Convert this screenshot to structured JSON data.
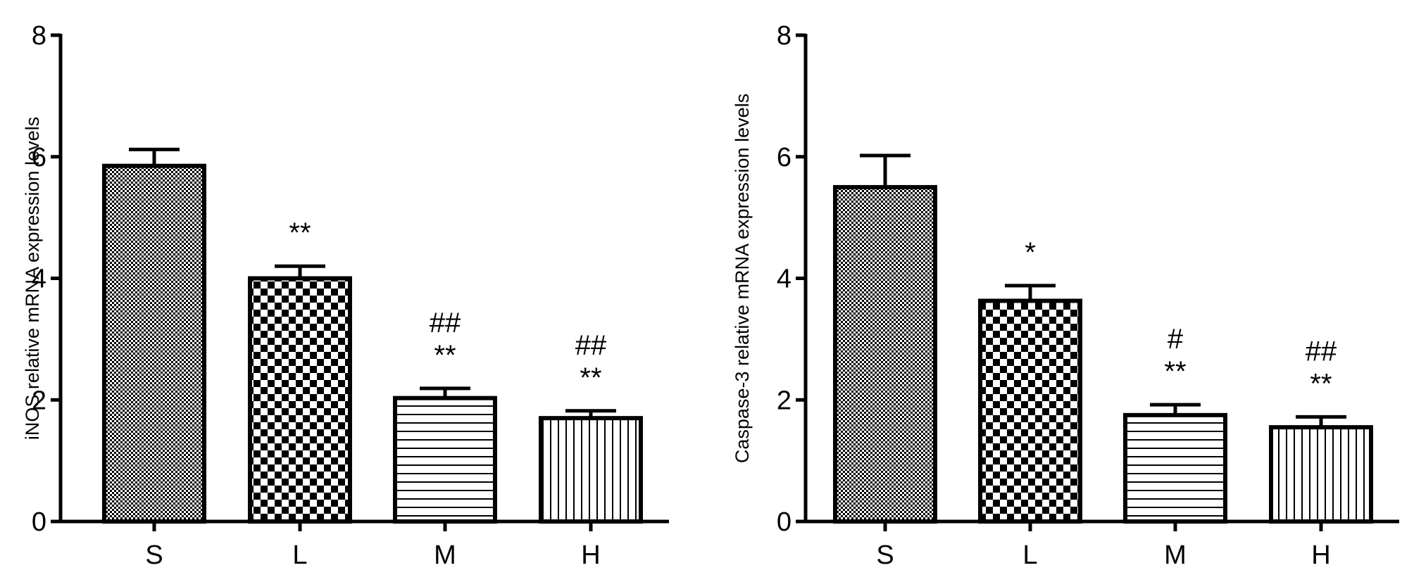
{
  "chart_data": [
    {
      "type": "bar",
      "title": "",
      "xlabel": "",
      "ylabel": "iNOS relative mRNA expression  levels",
      "categories": [
        "S",
        "L",
        "M",
        "H"
      ],
      "values": [
        5.85,
        4.0,
        2.03,
        1.7
      ],
      "errors": [
        0.27,
        0.2,
        0.16,
        0.12
      ],
      "annotations": [
        {
          "line1": "",
          "line2": ""
        },
        {
          "line1": "",
          "line2": "**"
        },
        {
          "line1": "##",
          "line2": "**"
        },
        {
          "line1": "##",
          "line2": "**"
        }
      ],
      "patterns": [
        "fine-checker",
        "coarse-checker",
        "horizontal-lines",
        "vertical-lines"
      ],
      "ylim": [
        0,
        8
      ],
      "yticks": [
        "0",
        "2",
        "4",
        "6",
        "8"
      ],
      "grid": false,
      "legend": "none"
    },
    {
      "type": "bar",
      "title": "",
      "xlabel": "",
      "ylabel": "Caspase-3 relative mRNA expression  levels",
      "categories": [
        "S",
        "L",
        "M",
        "H"
      ],
      "values": [
        5.5,
        3.63,
        1.75,
        1.55
      ],
      "errors": [
        0.52,
        0.25,
        0.17,
        0.17
      ],
      "annotations": [
        {
          "line1": "",
          "line2": ""
        },
        {
          "line1": "",
          "line2": "*"
        },
        {
          "line1": "#",
          "line2": "**"
        },
        {
          "line1": "##",
          "line2": "**"
        }
      ],
      "patterns": [
        "fine-checker",
        "coarse-checker",
        "horizontal-lines",
        "vertical-lines"
      ],
      "ylim": [
        0,
        8
      ],
      "yticks": [
        "0",
        "2",
        "4",
        "6",
        "8"
      ],
      "grid": false,
      "legend": "none"
    }
  ],
  "colors": {
    "bar_ink": "#000000",
    "bar_fill": "#ffffff",
    "background": "#ffffff"
  }
}
